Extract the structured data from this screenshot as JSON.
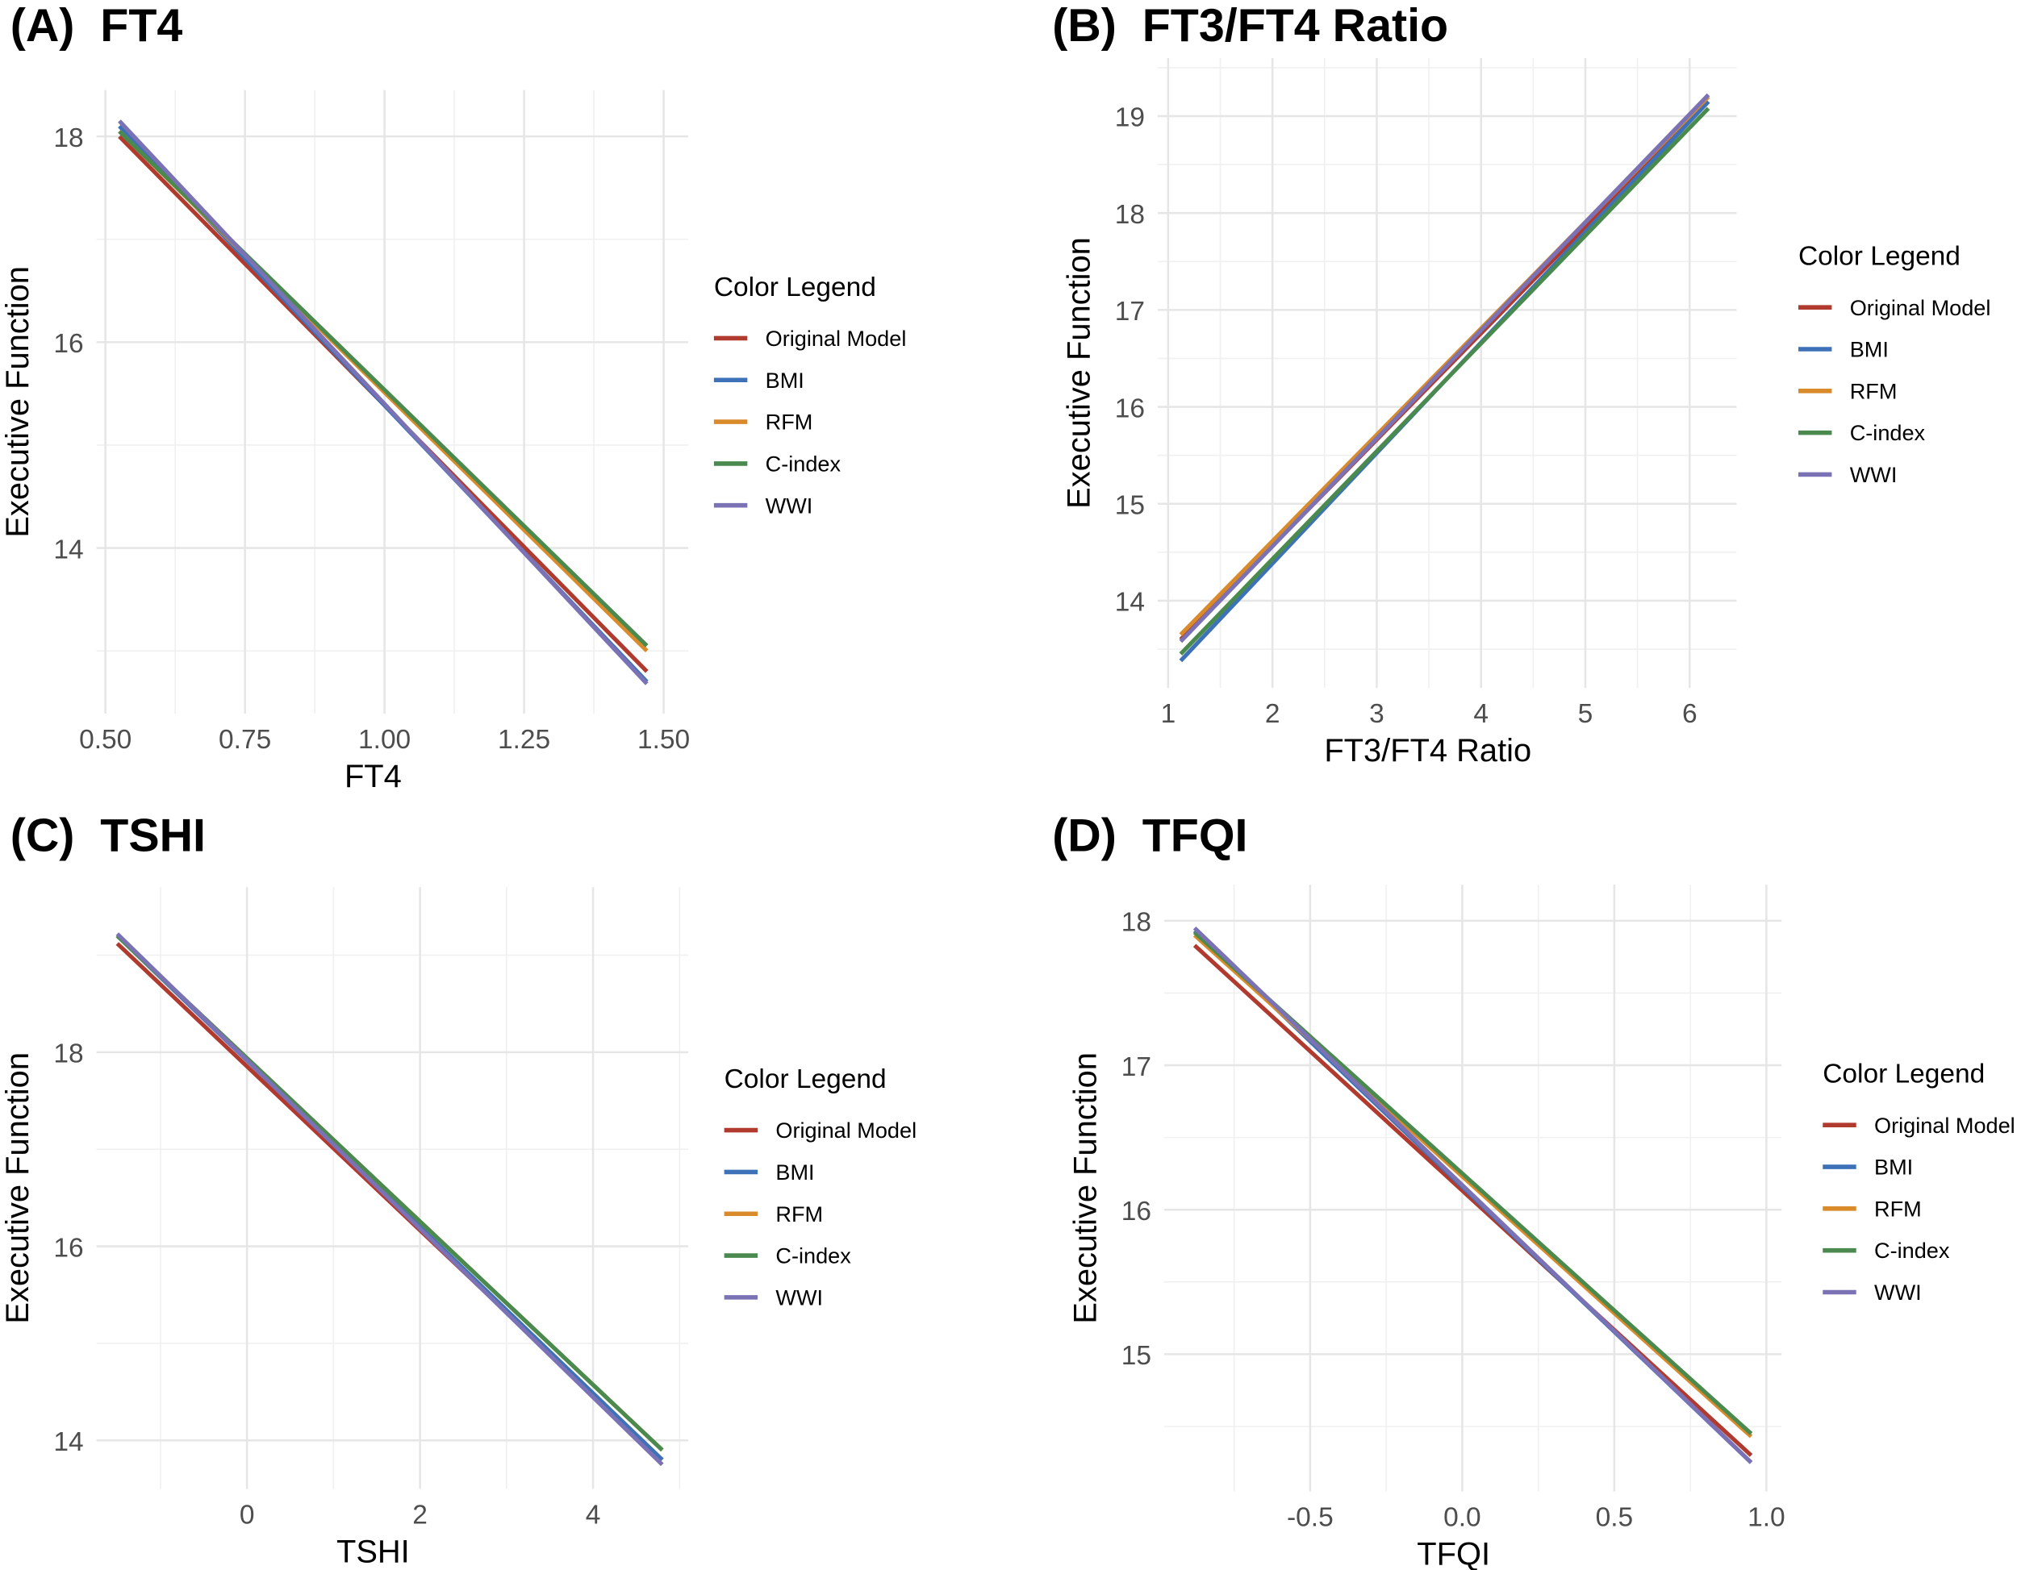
{
  "legend_title": "Color Legend",
  "series_colors": {
    "Original Model": "#b03a2e",
    "BMI": "#3d72b8",
    "RFM": "#d98a2b",
    "C-index": "#4a8a4e",
    "WWI": "#7b72b5"
  },
  "chart_data": [
    {
      "type": "line",
      "panel_label": "(A)",
      "title": "FT4",
      "xlabel": "FT4",
      "ylabel": "Executive Function",
      "xlim": [
        0.484,
        1.544
      ],
      "ylim": [
        12.39,
        18.45
      ],
      "xticks": [
        0.5,
        0.75,
        1.0,
        1.25,
        1.5
      ],
      "xtick_labels": [
        "0.50",
        "0.75",
        "1.00",
        "1.25",
        "1.50"
      ],
      "yticks": [
        14,
        16,
        18
      ],
      "ytick_labels": [
        "14",
        "16",
        "18"
      ],
      "grid": true,
      "legend_position": "right",
      "x": [
        0.525,
        1.47
      ],
      "series": [
        {
          "name": "Original Model",
          "values": [
            18.0,
            12.8
          ]
        },
        {
          "name": "BMI",
          "values": [
            18.1,
            12.7
          ]
        },
        {
          "name": "RFM",
          "values": [
            18.05,
            13.0
          ]
        },
        {
          "name": "C-index",
          "values": [
            18.05,
            13.05
          ]
        },
        {
          "name": "WWI",
          "values": [
            18.15,
            12.68
          ]
        }
      ]
    },
    {
      "type": "line",
      "panel_label": "(B)",
      "title": "FT3/FT4 Ratio",
      "xlabel": "FT3/FT4 Ratio",
      "ylabel": "Executive Function",
      "xlim": [
        0.9,
        6.45
      ],
      "ylim": [
        13.1,
        19.6
      ],
      "xticks": [
        1,
        2,
        3,
        4,
        5,
        6
      ],
      "xtick_labels": [
        "1",
        "2",
        "3",
        "4",
        "5",
        "6"
      ],
      "yticks": [
        14,
        15,
        16,
        17,
        18,
        19
      ],
      "ytick_labels": [
        "14",
        "15",
        "16",
        "17",
        "18",
        "19"
      ],
      "grid": true,
      "legend_position": "right",
      "x": [
        1.12,
        6.18
      ],
      "series": [
        {
          "name": "Original Model",
          "values": [
            13.6,
            19.15
          ]
        },
        {
          "name": "BMI",
          "values": [
            13.38,
            19.15
          ]
        },
        {
          "name": "RFM",
          "values": [
            13.65,
            19.2
          ]
        },
        {
          "name": "C-index",
          "values": [
            13.45,
            19.08
          ]
        },
        {
          "name": "WWI",
          "values": [
            13.58,
            19.22
          ]
        }
      ]
    },
    {
      "type": "line",
      "panel_label": "(C)",
      "title": "TSHI",
      "xlabel": "TSHI",
      "ylabel": "Executive Function",
      "xlim": [
        -1.74,
        5.1
      ],
      "ylim": [
        13.5,
        19.7
      ],
      "xticks": [
        0,
        2,
        4
      ],
      "xtick_labels": [
        "0",
        "2",
        "4"
      ],
      "yticks": [
        14,
        16,
        18
      ],
      "ytick_labels": [
        "14",
        "16",
        "18"
      ],
      "grid": true,
      "legend_position": "right",
      "x": [
        -1.5,
        4.8
      ],
      "series": [
        {
          "name": "Original Model",
          "values": [
            19.12,
            13.8
          ]
        },
        {
          "name": "BMI",
          "values": [
            19.2,
            13.8
          ]
        },
        {
          "name": "RFM",
          "values": [
            19.2,
            13.9
          ]
        },
        {
          "name": "C-index",
          "values": [
            19.2,
            13.9
          ]
        },
        {
          "name": "WWI",
          "values": [
            19.22,
            13.75
          ]
        }
      ]
    },
    {
      "type": "line",
      "panel_label": "(D)",
      "title": "TFQI",
      "xlabel": "TFQI",
      "ylabel": "Executive Function",
      "xlim": [
        -0.98,
        1.05
      ],
      "ylim": [
        14.05,
        18.25
      ],
      "xticks": [
        -0.5,
        0.0,
        0.5,
        1.0
      ],
      "xtick_labels": [
        "-0.5",
        "0.0",
        "0.5",
        "1.0"
      ],
      "yticks": [
        15,
        16,
        17,
        18
      ],
      "ytick_labels": [
        "15",
        "16",
        "17",
        "18"
      ],
      "grid": true,
      "legend_position": "right",
      "x": [
        -0.88,
        0.95
      ],
      "series": [
        {
          "name": "Original Model",
          "values": [
            17.83,
            14.3
          ]
        },
        {
          "name": "BMI",
          "values": [
            17.93,
            14.25
          ]
        },
        {
          "name": "RFM",
          "values": [
            17.9,
            14.43
          ]
        },
        {
          "name": "C-index",
          "values": [
            17.92,
            14.45
          ]
        },
        {
          "name": "WWI",
          "values": [
            17.95,
            14.25
          ]
        }
      ]
    }
  ]
}
